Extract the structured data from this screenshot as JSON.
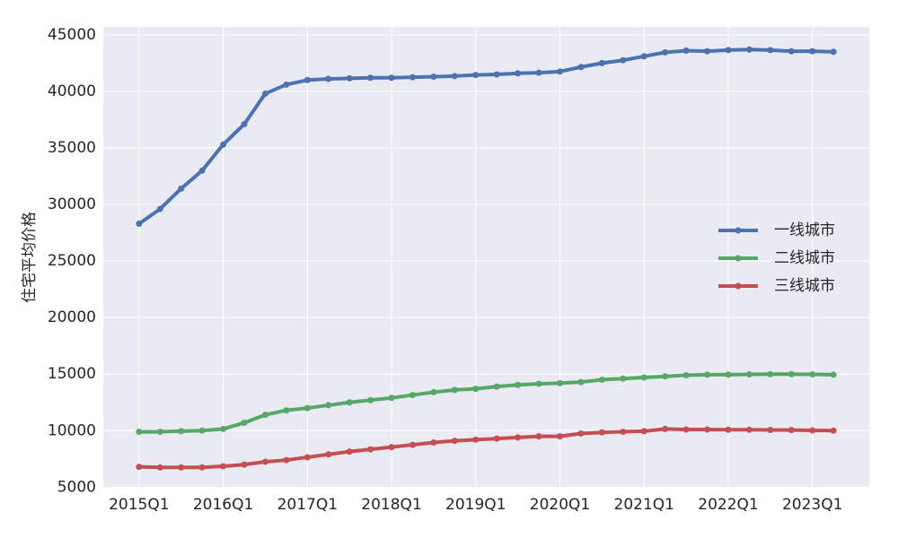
{
  "chart_data": {
    "type": "line",
    "y_label": "住宅平均价格",
    "categories": [
      "2015Q1",
      null,
      null,
      null,
      "2016Q1",
      null,
      null,
      null,
      "2017Q1",
      null,
      null,
      null,
      "2018Q1",
      null,
      null,
      null,
      "2019Q1",
      null,
      null,
      null,
      "2020Q1",
      null,
      null,
      null,
      "2021Q1",
      null,
      null,
      null,
      "2022Q1",
      null,
      null,
      null,
      "2023Q1",
      null
    ],
    "series": [
      {
        "name": "一线城市",
        "color": "#4c72b0",
        "values": [
          28300,
          29600,
          31400,
          33000,
          35300,
          37100,
          39800,
          40600,
          41000,
          41100,
          41150,
          41200,
          41200,
          41250,
          41300,
          41350,
          41450,
          41500,
          41600,
          41650,
          41750,
          42150,
          42500,
          42750,
          43100,
          43450,
          43600,
          43550,
          43650,
          43700,
          43650,
          43550,
          43550,
          43500
        ]
      },
      {
        "name": "二线城市",
        "color": "#55a868",
        "values": [
          9900,
          9900,
          9950,
          10000,
          10150,
          10700,
          11400,
          11800,
          12000,
          12250,
          12500,
          12700,
          12900,
          13150,
          13400,
          13600,
          13700,
          13900,
          14050,
          14150,
          14200,
          14300,
          14500,
          14600,
          14700,
          14800,
          14900,
          14950,
          14950,
          14980,
          15000,
          15000,
          14980,
          14950
        ]
      },
      {
        "name": "三线城市",
        "color": "#c44e52",
        "values": [
          6800,
          6750,
          6750,
          6750,
          6850,
          7000,
          7250,
          7400,
          7650,
          7900,
          8150,
          8350,
          8550,
          8750,
          8950,
          9100,
          9200,
          9300,
          9400,
          9500,
          9500,
          9750,
          9850,
          9900,
          9950,
          10150,
          10100,
          10100,
          10080,
          10080,
          10060,
          10050,
          10020,
          10000
        ]
      }
    ],
    "ylim": [
      4950,
      45700
    ],
    "yticks": [
      5000,
      10000,
      15000,
      20000,
      25000,
      30000,
      35000,
      40000,
      45000
    ],
    "grid": true,
    "legend": "right"
  }
}
